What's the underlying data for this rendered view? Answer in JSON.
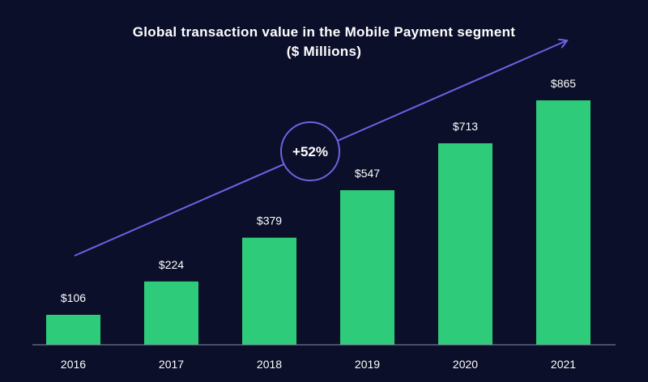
{
  "chart_data": {
    "type": "bar",
    "title": "Global transaction value in the Mobile Payment segment",
    "subtitle": "($ Millions)",
    "categories": [
      "2016",
      "2017",
      "2018",
      "2019",
      "2020",
      "2021"
    ],
    "values": [
      106,
      224,
      379,
      547,
      713,
      865
    ],
    "value_labels": [
      "$106",
      "$224",
      "$379",
      "$547",
      "$713",
      "$865"
    ],
    "ylim": [
      0,
      1000
    ],
    "grid": false,
    "legend": "none",
    "annotation": {
      "text": "+52%",
      "shape": "circle on trend arrow"
    },
    "colors": {
      "background": "#0b0f29",
      "bar": "#2ecc7a",
      "arrow": "#6b63e6",
      "text": "#ffffff",
      "baseline": "#8a8fa8"
    }
  }
}
